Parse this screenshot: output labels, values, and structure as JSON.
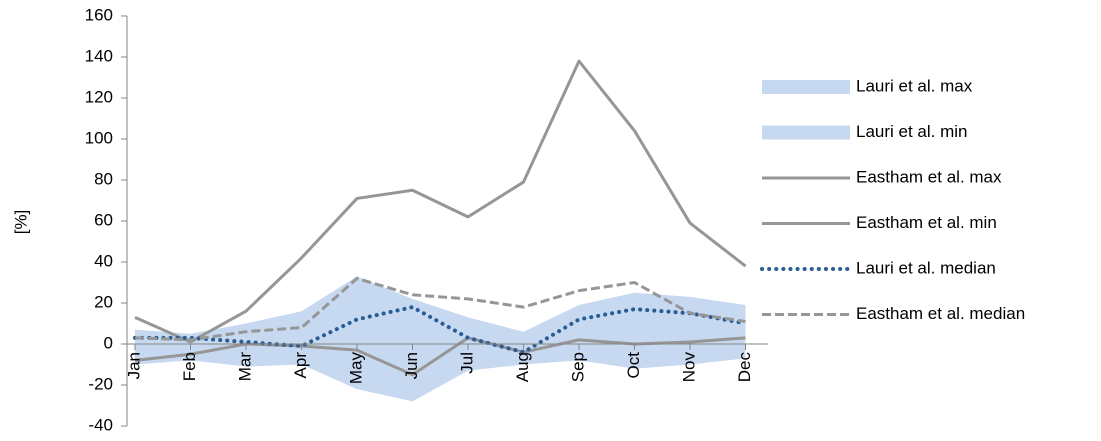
{
  "chart_data": {
    "type": "line",
    "y_label": "[%]",
    "categories": [
      "Jan",
      "Feb",
      "Mar",
      "Apr",
      "May",
      "Jun",
      "Jul",
      "Aug",
      "Sep",
      "Oct",
      "Nov",
      "Dec"
    ],
    "ylim": [
      -40,
      160
    ],
    "yticks": [
      -40,
      -20,
      0,
      20,
      40,
      60,
      80,
      100,
      120,
      140,
      160
    ],
    "legend": "right",
    "series": [
      {
        "name": "Lauri et al. max",
        "style": "area",
        "color": "#c6d9f0",
        "values": [
          7,
          5,
          10,
          16,
          33,
          22,
          13,
          6,
          19,
          25,
          23,
          19
        ]
      },
      {
        "name": "Lauri et al. min",
        "style": "area",
        "color": "#c6d9f0",
        "values": [
          -10,
          -8,
          -11,
          -10,
          -22,
          -28,
          -13,
          -10,
          -8,
          -12,
          -10,
          -7
        ]
      },
      {
        "name": "Eastham et al. max",
        "style": "solid",
        "color": "#969696",
        "values": [
          13,
          1,
          16,
          42,
          71,
          75,
          62,
          79,
          138,
          104,
          59,
          38
        ]
      },
      {
        "name": "Eastham et al. min",
        "style": "solid",
        "color": "#969696",
        "values": [
          -8,
          -5,
          0,
          -1,
          -3,
          -15,
          3,
          -4,
          2,
          0,
          1,
          3
        ]
      },
      {
        "name": "Lauri et al. median",
        "style": "dotted",
        "color": "#2a5d96",
        "values": [
          3,
          3,
          1,
          -1,
          12,
          18,
          3,
          -4,
          12,
          17,
          15,
          10
        ]
      },
      {
        "name": "Eastham et al. median",
        "style": "dashed",
        "color": "#969696",
        "values": [
          3,
          2,
          6,
          8,
          32,
          24,
          22,
          18,
          26,
          30,
          15,
          11
        ]
      }
    ]
  }
}
